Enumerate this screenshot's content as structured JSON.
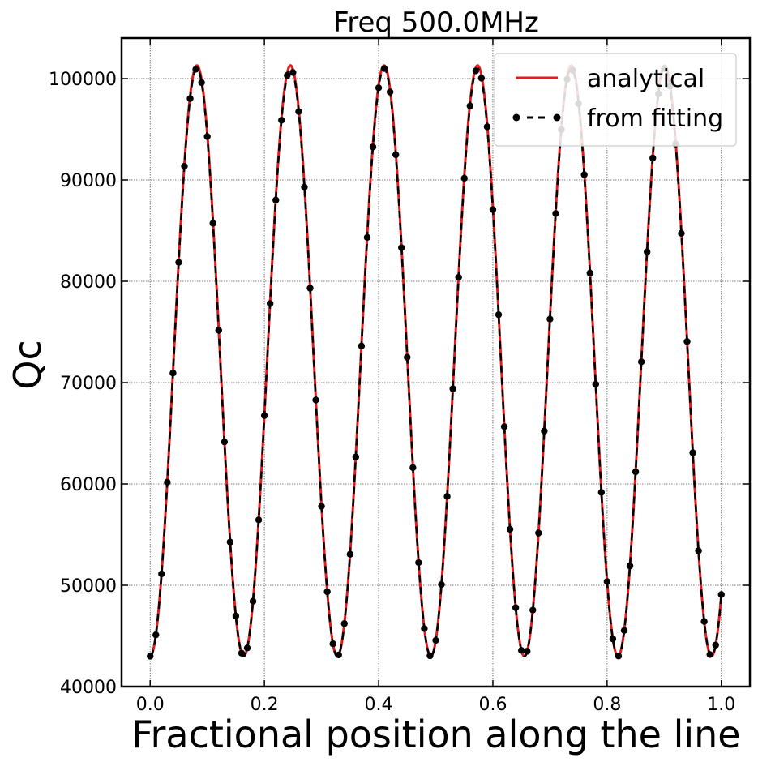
{
  "chart_data": {
    "type": "line",
    "title": "Freq 500.0MHz",
    "xlabel": "Fractional position along the line",
    "ylabel": "Qc",
    "xlim": [
      -0.05,
      1.05
    ],
    "ylim": [
      40000,
      104000
    ],
    "xticks": [
      "0.0",
      "0.2",
      "0.4",
      "0.6",
      "0.8",
      "1.0"
    ],
    "xtick_values": [
      0.0,
      0.2,
      0.4,
      0.6,
      0.8,
      1.0
    ],
    "yticks": [
      "40000",
      "50000",
      "60000",
      "70000",
      "80000",
      "90000",
      "100000"
    ],
    "ytick_values": [
      40000,
      50000,
      60000,
      70000,
      80000,
      90000,
      100000
    ],
    "grid": true,
    "legend_position": "top-right",
    "series": [
      {
        "name": "analytical",
        "style": "solid line",
        "color": "#e41a1c",
        "y_min": 43000,
        "y_max": 101300,
        "peak_x": [
          0.09,
          0.255,
          0.42,
          0.58,
          0.745,
          0.91
        ],
        "trough_x": [
          0.0,
          0.17,
          0.335,
          0.5,
          0.665,
          0.83,
          1.0
        ],
        "period": 0.1638
      },
      {
        "name": "from fitting",
        "style": "dashed line with markers",
        "color": "#000000",
        "x_start": 0.0,
        "x_end": 1.0,
        "num_points": 101,
        "y_min": 43000,
        "y_max": 101000,
        "period": 0.1638
      }
    ]
  }
}
